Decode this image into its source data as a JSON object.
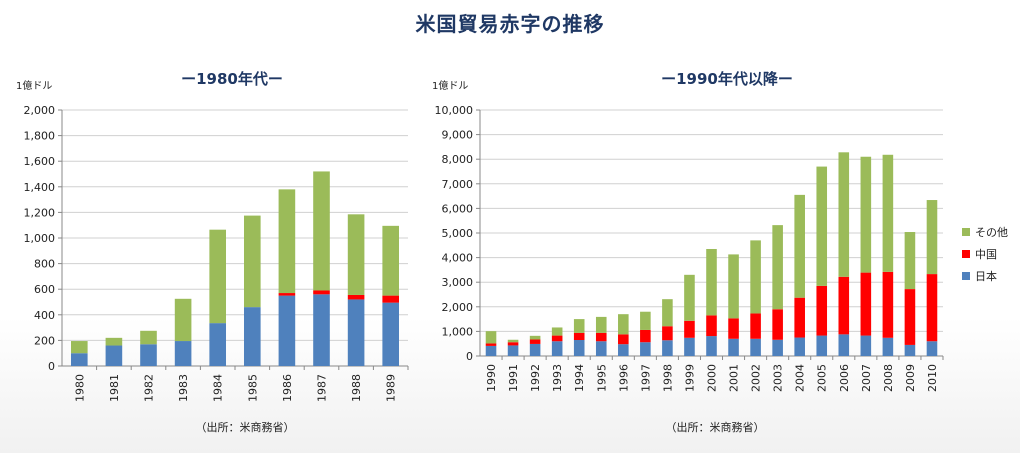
{
  "title": "米国貿易赤字の推移",
  "colors": {
    "japan": "#4f81bd",
    "china": "#ff0000",
    "other": "#9bbb59",
    "grid": "#d0d0d0",
    "axis": "#888888"
  },
  "chart_data": [
    {
      "type": "bar",
      "stacked": true,
      "title": "ー1980年代ー",
      "unit_label": "1億ドル",
      "source": "（出所：米商務省）",
      "categories": [
        "1980",
        "1981",
        "1982",
        "1983",
        "1984",
        "1985",
        "1986",
        "1987",
        "1988",
        "1989"
      ],
      "ylim": [
        0,
        2000
      ],
      "ytick_step": 200,
      "ytick_labels": [
        "0",
        "200",
        "400",
        "600",
        "800",
        "1,000",
        "1,200",
        "1,400",
        "1,600",
        "1,800",
        "2,000"
      ],
      "grid": true,
      "series": [
        {
          "key": "japan",
          "values": [
            100,
            160,
            170,
            195,
            335,
            460,
            550,
            560,
            520,
            495
          ]
        },
        {
          "key": "china",
          "values": [
            0,
            0,
            0,
            0,
            0,
            0,
            20,
            30,
            35,
            55
          ]
        },
        {
          "key": "other",
          "values": [
            95,
            60,
            105,
            330,
            730,
            715,
            810,
            930,
            630,
            545
          ]
        }
      ]
    },
    {
      "type": "bar",
      "stacked": true,
      "title": "ー1990年代以降ー",
      "unit_label": "1億ドル",
      "source": "（出所：米商務省）",
      "categories": [
        "1990",
        "1991",
        "1992",
        "1993",
        "1994",
        "1995",
        "1996",
        "1997",
        "1998",
        "1999",
        "2000",
        "2001",
        "2002",
        "2003",
        "2004",
        "2005",
        "2006",
        "2007",
        "2008",
        "2009",
        "2010"
      ],
      "ylim": [
        0,
        10000
      ],
      "ytick_step": 1000,
      "ytick_labels": [
        "0",
        "1,000",
        "2,000",
        "3,000",
        "4,000",
        "5,000",
        "6,000",
        "7,000",
        "8,000",
        "9,000",
        "10,000"
      ],
      "grid": true,
      "legend_position": "right",
      "series": [
        {
          "key": "japan",
          "name": "日本",
          "values": [
            410,
            430,
            490,
            600,
            650,
            600,
            480,
            560,
            640,
            740,
            810,
            700,
            700,
            660,
            750,
            830,
            880,
            830,
            740,
            450,
            600
          ]
        },
        {
          "key": "china",
          "name": "中国",
          "values": [
            100,
            130,
            180,
            230,
            290,
            340,
            400,
            500,
            570,
            690,
            840,
            830,
            1030,
            1240,
            1620,
            2020,
            2340,
            2560,
            2680,
            2270,
            2730
          ]
        },
        {
          "key": "other",
          "name": "その他",
          "values": [
            500,
            100,
            150,
            330,
            560,
            650,
            820,
            740,
            1100,
            1870,
            2700,
            2600,
            2970,
            3420,
            4180,
            4850,
            5060,
            4710,
            4760,
            2320,
            3010
          ]
        }
      ]
    }
  ]
}
